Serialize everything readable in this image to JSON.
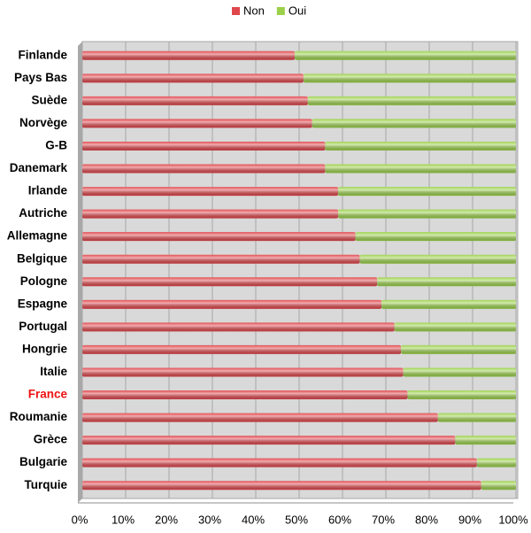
{
  "chart_data": {
    "type": "stacked-barh",
    "categories": [
      "Finlande",
      "Pays Bas",
      "Suède",
      "Norvège",
      "G-B",
      "Danemark",
      "Irlande",
      "Autriche",
      "Allemagne",
      "Belgique",
      "Pologne",
      "Espagne",
      "Portugal",
      "Hongrie",
      "Italie",
      "France",
      "Roumanie",
      "Grèce",
      "Bulgarie",
      "Turquie"
    ],
    "series": [
      {
        "name": "Non",
        "color": "#e0474c",
        "values": [
          49,
          51,
          52,
          53,
          56,
          56,
          59,
          59,
          63,
          64,
          68,
          69,
          72,
          73.5,
          74,
          75,
          82,
          86,
          91,
          92
        ]
      },
      {
        "name": "Oui",
        "color": "#9bd14a",
        "values": [
          51,
          49,
          48,
          47,
          44,
          44,
          41,
          41,
          37,
          36,
          32,
          31,
          28,
          26.5,
          26,
          25,
          18,
          14,
          9,
          8
        ]
      }
    ],
    "xlim": [
      0,
      100
    ],
    "xticks": [
      {
        "value": 0,
        "label": "0%"
      },
      {
        "value": 10,
        "label": "10%"
      },
      {
        "value": 20,
        "label": "20%"
      },
      {
        "value": 30,
        "label": "30%"
      },
      {
        "value": 40,
        "label": "40%"
      },
      {
        "value": 50,
        "label": "50%"
      },
      {
        "value": 60,
        "label": "60%"
      },
      {
        "value": 70,
        "label": "70%"
      },
      {
        "value": 80,
        "label": "80%"
      },
      {
        "value": 90,
        "label": "90%"
      },
      {
        "value": 100,
        "label": "100%"
      }
    ],
    "grid": true,
    "legend": "top",
    "highlight_category": "France",
    "highlight_color": "#ee1111"
  }
}
